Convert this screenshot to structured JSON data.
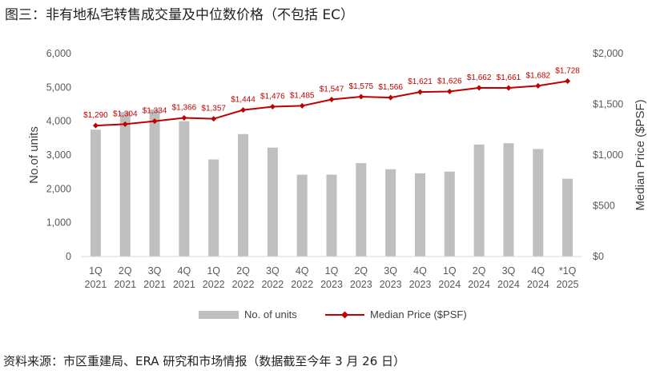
{
  "title": "图三：非有地私宅转售成交量及中位数价格（不包括 EC）",
  "source": "资料来源：市区重建局、ERA 研究和市场情报（数据截至今年 3 月 26 日）",
  "colors": {
    "bar": "#bfbfbf",
    "line": "#c00000",
    "text": "#595959"
  },
  "chart_data": {
    "type": "bar-line-combo",
    "categories": [
      [
        "1Q",
        "2021"
      ],
      [
        "2Q",
        "2021"
      ],
      [
        "3Q",
        "2021"
      ],
      [
        "4Q",
        "2021"
      ],
      [
        "1Q",
        "2022"
      ],
      [
        "2Q",
        "2022"
      ],
      [
        "3Q",
        "2022"
      ],
      [
        "4Q",
        "2022"
      ],
      [
        "1Q",
        "2023"
      ],
      [
        "2Q",
        "2023"
      ],
      [
        "3Q",
        "2023"
      ],
      [
        "4Q",
        "2023"
      ],
      [
        "1Q",
        "2024"
      ],
      [
        "2Q",
        "2024"
      ],
      [
        "3Q",
        "2024"
      ],
      [
        "4Q",
        "2024"
      ],
      [
        "*1Q",
        "2025"
      ]
    ],
    "y_left": {
      "label": "No.of units",
      "ylim": [
        0,
        6000
      ],
      "ticks": [
        "0",
        "1,000",
        "2,000",
        "3,000",
        "4,000",
        "5,000",
        "6,000"
      ]
    },
    "y_right": {
      "label": "Median Price ($PSF)",
      "ylim": [
        0,
        2000
      ],
      "ticks": [
        "$0",
        "$500",
        "$1,000",
        "$1,500",
        "$2,000"
      ]
    },
    "series": [
      {
        "name": "No. of units",
        "type": "bar",
        "axis": "left",
        "values": [
          3750,
          4270,
          4350,
          4000,
          2870,
          3620,
          3220,
          2420,
          2420,
          2760,
          2580,
          2460,
          2510,
          3310,
          3350,
          3180,
          2300
        ]
      },
      {
        "name": "Median Price ($PSF)",
        "type": "line",
        "axis": "right",
        "values": [
          1290,
          1304,
          1334,
          1366,
          1357,
          1444,
          1476,
          1485,
          1547,
          1575,
          1566,
          1621,
          1626,
          1662,
          1661,
          1682,
          1728
        ],
        "labels": [
          "$1,290",
          "$1,304",
          "$1,334",
          "$1,366",
          "$1,357",
          "$1,444",
          "$1,476",
          "$1,485",
          "$1,547",
          "$1,575",
          "$1,566",
          "$1,621",
          "$1,626",
          "$1,662",
          "$1,661",
          "$1,682",
          "$1,728"
        ]
      }
    ],
    "grid": false,
    "legend_position": "bottom"
  }
}
